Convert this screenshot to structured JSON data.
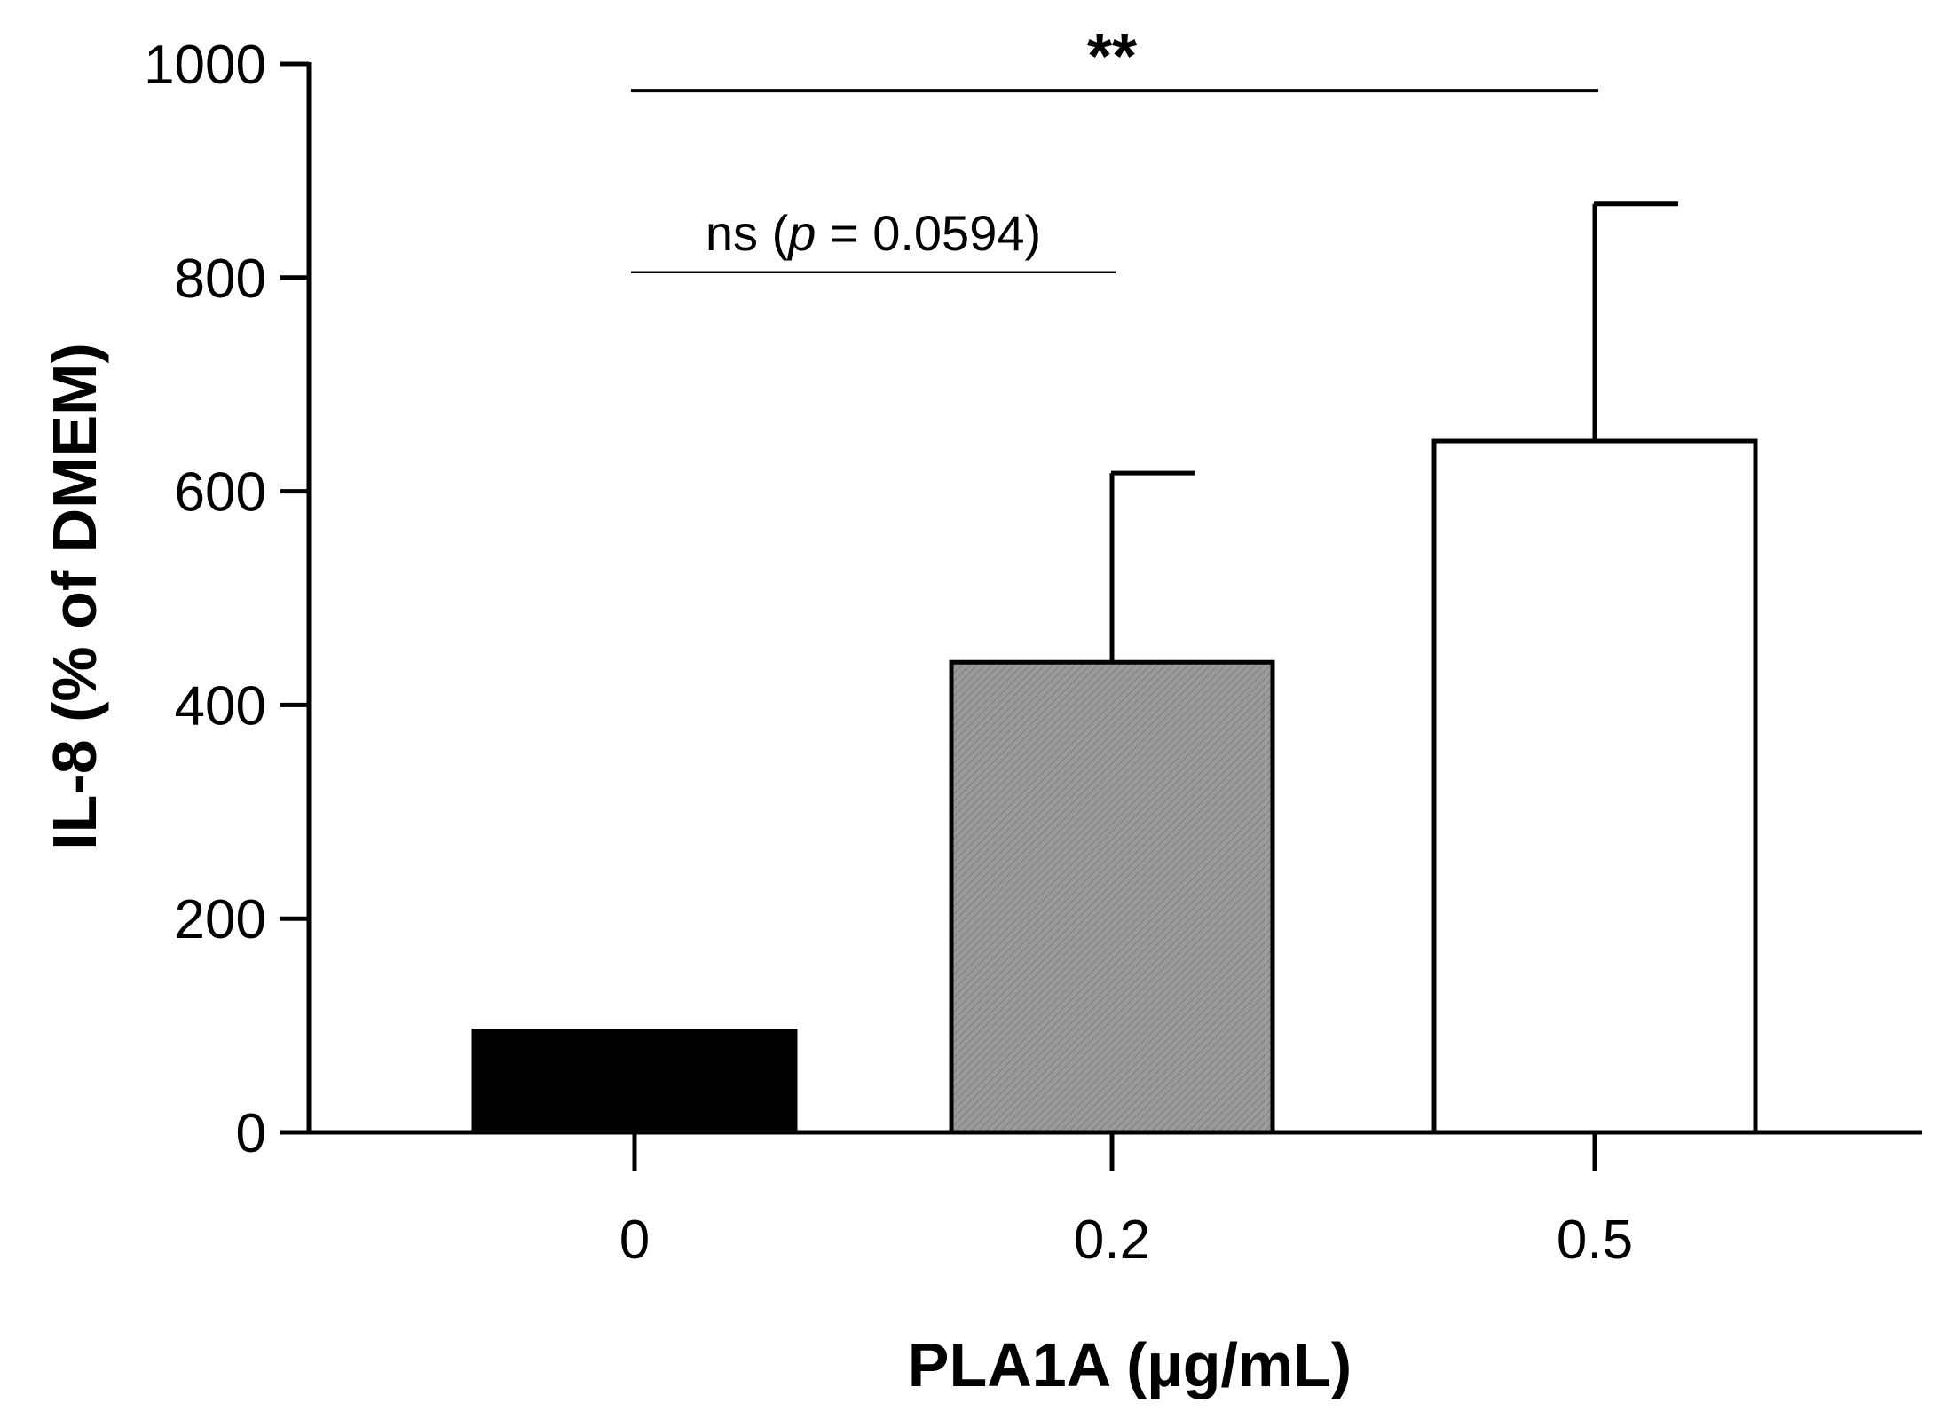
{
  "chart_data": {
    "type": "bar",
    "title": "",
    "xlabel": "PLA1A (µg/mL)",
    "ylabel": "IL-8 (% of DMEM)",
    "categories": [
      "0",
      "0.2",
      "0.5"
    ],
    "values": [
      95,
      440,
      647
    ],
    "errors": [
      0,
      177,
      222
    ],
    "colors": [
      "#000000",
      "#969696",
      "#ffffff"
    ],
    "ylim": [
      0,
      1000
    ],
    "yticks": [
      0,
      200,
      400,
      600,
      800,
      1000
    ],
    "yticklabels": [
      "0",
      "200",
      "400",
      "600",
      "800",
      "1000"
    ],
    "grid": false,
    "annotations": [
      {
        "name": "sig-0-vs-0.5",
        "from": "0",
        "to": "0.5",
        "y": 975,
        "label": "**",
        "italic_part": ""
      },
      {
        "name": "sig-0-vs-0.2",
        "from": "0",
        "to": "0.2",
        "y": 805,
        "label_prefix": "ns (",
        "label_italic": "p",
        "label_suffix": " = 0.0594)"
      }
    ]
  }
}
